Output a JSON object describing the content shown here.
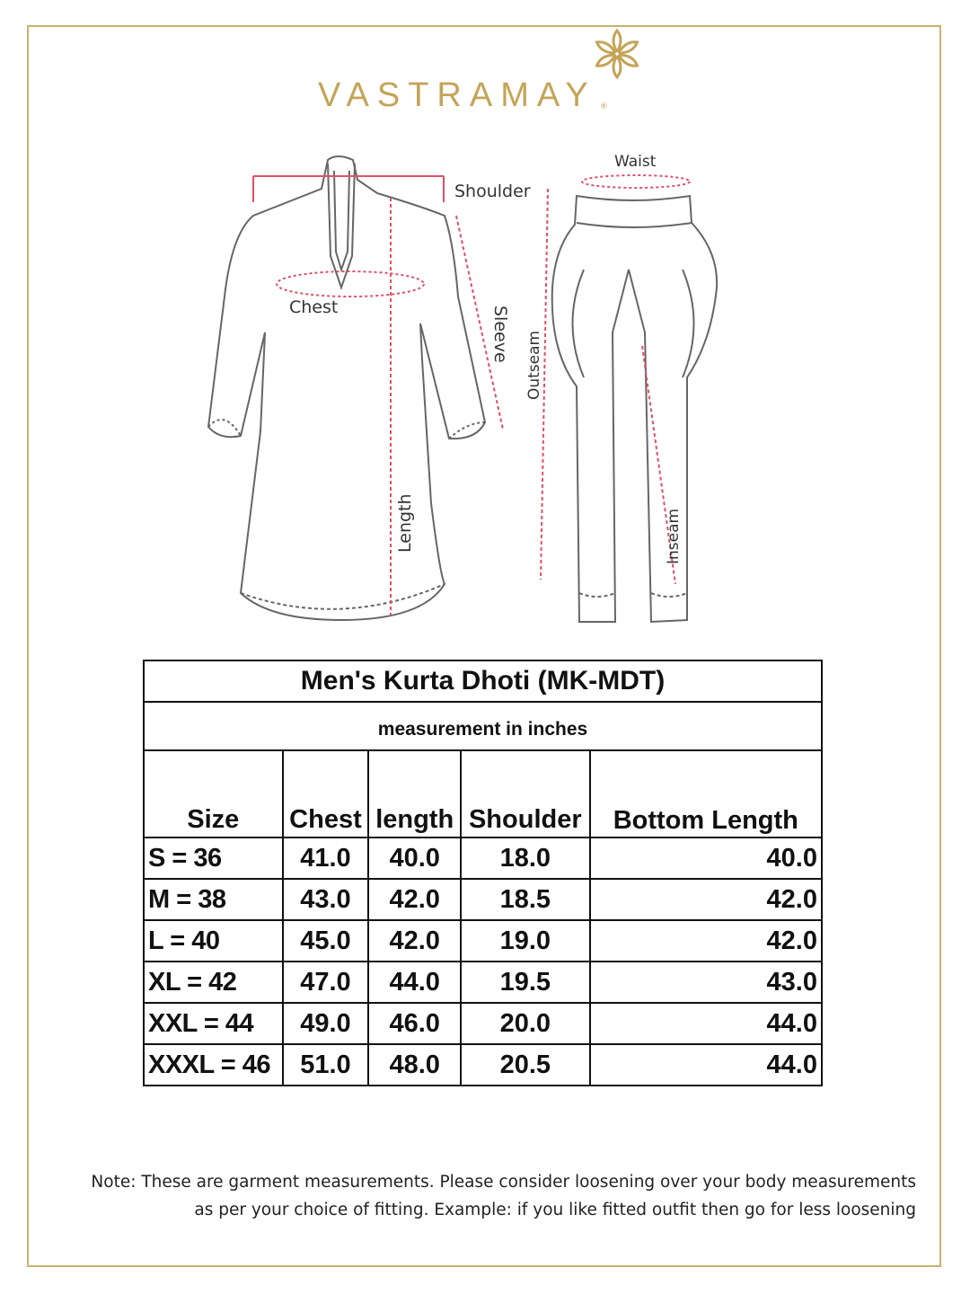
{
  "brand": {
    "name": "VASTRAMAY",
    "registered": "®",
    "color": "#c4a458"
  },
  "diagram": {
    "kurta_labels": {
      "shoulder": "Shoulder",
      "chest": "Chest",
      "sleeve": "Sleeve",
      "length": "Length"
    },
    "dhoti_labels": {
      "waist": "Waist",
      "outseam": "Outseam",
      "inseam": "Inseam"
    },
    "measure_line_color": "#e0506a"
  },
  "table": {
    "title": "Men's Kurta Dhoti (MK-MDT)",
    "subtitle": "measurement in inches",
    "headers": [
      "Size",
      "Chest",
      "length",
      "Shoulder",
      "Bottom Length"
    ],
    "rows": [
      [
        "S = 36",
        "41.0",
        "40.0",
        "18.0",
        "40.0"
      ],
      [
        "M = 38",
        "43.0",
        "42.0",
        "18.5",
        "42.0"
      ],
      [
        "L = 40",
        "45.0",
        "42.0",
        "19.0",
        "42.0"
      ],
      [
        "XL = 42",
        "47.0",
        "44.0",
        "19.5",
        "43.0"
      ],
      [
        "XXL = 44",
        "49.0",
        "46.0",
        "20.0",
        "44.0"
      ],
      [
        "XXXL = 46",
        "51.0",
        "48.0",
        "20.5",
        "44.0"
      ]
    ]
  },
  "note": {
    "line1": "Note: These are garment measurements. Please consider loosening over your body measurements",
    "line2": "as per your choice of fitting. Example: if you like fitted outfit then go for less loosening"
  }
}
